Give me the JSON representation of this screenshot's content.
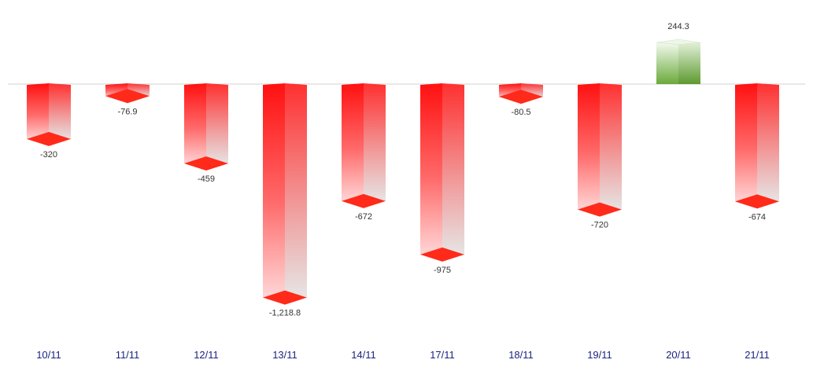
{
  "chart_data": {
    "type": "bar",
    "title": "",
    "xlabel": "",
    "ylabel": "",
    "categories": [
      "10/11",
      "11/11",
      "12/11",
      "13/11",
      "14/11",
      "17/11",
      "18/11",
      "19/11",
      "20/11",
      "21/11"
    ],
    "values": [
      -320,
      -76.9,
      -459,
      -1218.8,
      -672,
      -975,
      -80.5,
      -720,
      244.3,
      -674
    ],
    "value_labels": [
      "-320",
      "-76.9",
      "-459",
      "-1,218.8",
      "-672",
      "-975",
      "-80.5",
      "-720",
      "244.3",
      "-674"
    ],
    "ylim": [
      -1450,
      450
    ],
    "grid": false,
    "legend": "none",
    "colors": {
      "negative": "#ff1a1a",
      "negative_fade": "#e8e8e8",
      "positive": "#6aaa3a",
      "positive_fade": "#f2f8ee",
      "baseline": "#d0d0d0",
      "category_text": "#1a237e",
      "value_text": "#333333"
    }
  }
}
